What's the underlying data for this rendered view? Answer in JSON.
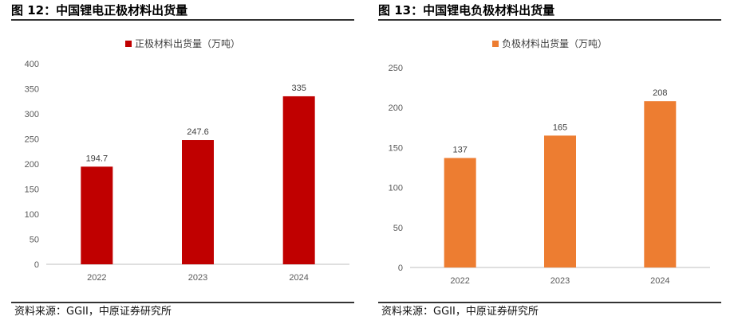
{
  "chart_data": [
    {
      "figure_label": "图 12：中国锂电正极材料出货量",
      "type": "bar",
      "categories": [
        "2022",
        "2023",
        "2024"
      ],
      "series": [
        {
          "name": "正极材料出货量（万吨）",
          "values": [
            194.7,
            247.6,
            335
          ],
          "color": "#C00000"
        }
      ],
      "data_labels": [
        "194.7",
        "247.6",
        "335"
      ],
      "y_ticks": [
        "0",
        "50",
        "100",
        "150",
        "200",
        "250",
        "300",
        "350",
        "400"
      ],
      "ylim": [
        0,
        400
      ],
      "xlabel": "",
      "ylabel": "",
      "legend_position": "top",
      "grid": false,
      "source": "资料来源：GGII，中原证券研究所"
    },
    {
      "figure_label": "图 13：中国锂电负极材料出货量",
      "type": "bar",
      "categories": [
        "2022",
        "2023",
        "2024"
      ],
      "series": [
        {
          "name": "负极材料出货量（万吨）",
          "values": [
            137,
            165,
            208
          ],
          "color": "#ED7D31"
        }
      ],
      "data_labels": [
        "137",
        "165",
        "208"
      ],
      "y_ticks": [
        "0",
        "50",
        "100",
        "150",
        "200",
        "250"
      ],
      "ylim": [
        0,
        250
      ],
      "xlabel": "",
      "ylabel": "",
      "legend_position": "top",
      "grid": false,
      "source": "资料来源：GGII，中原证券研究所"
    }
  ]
}
